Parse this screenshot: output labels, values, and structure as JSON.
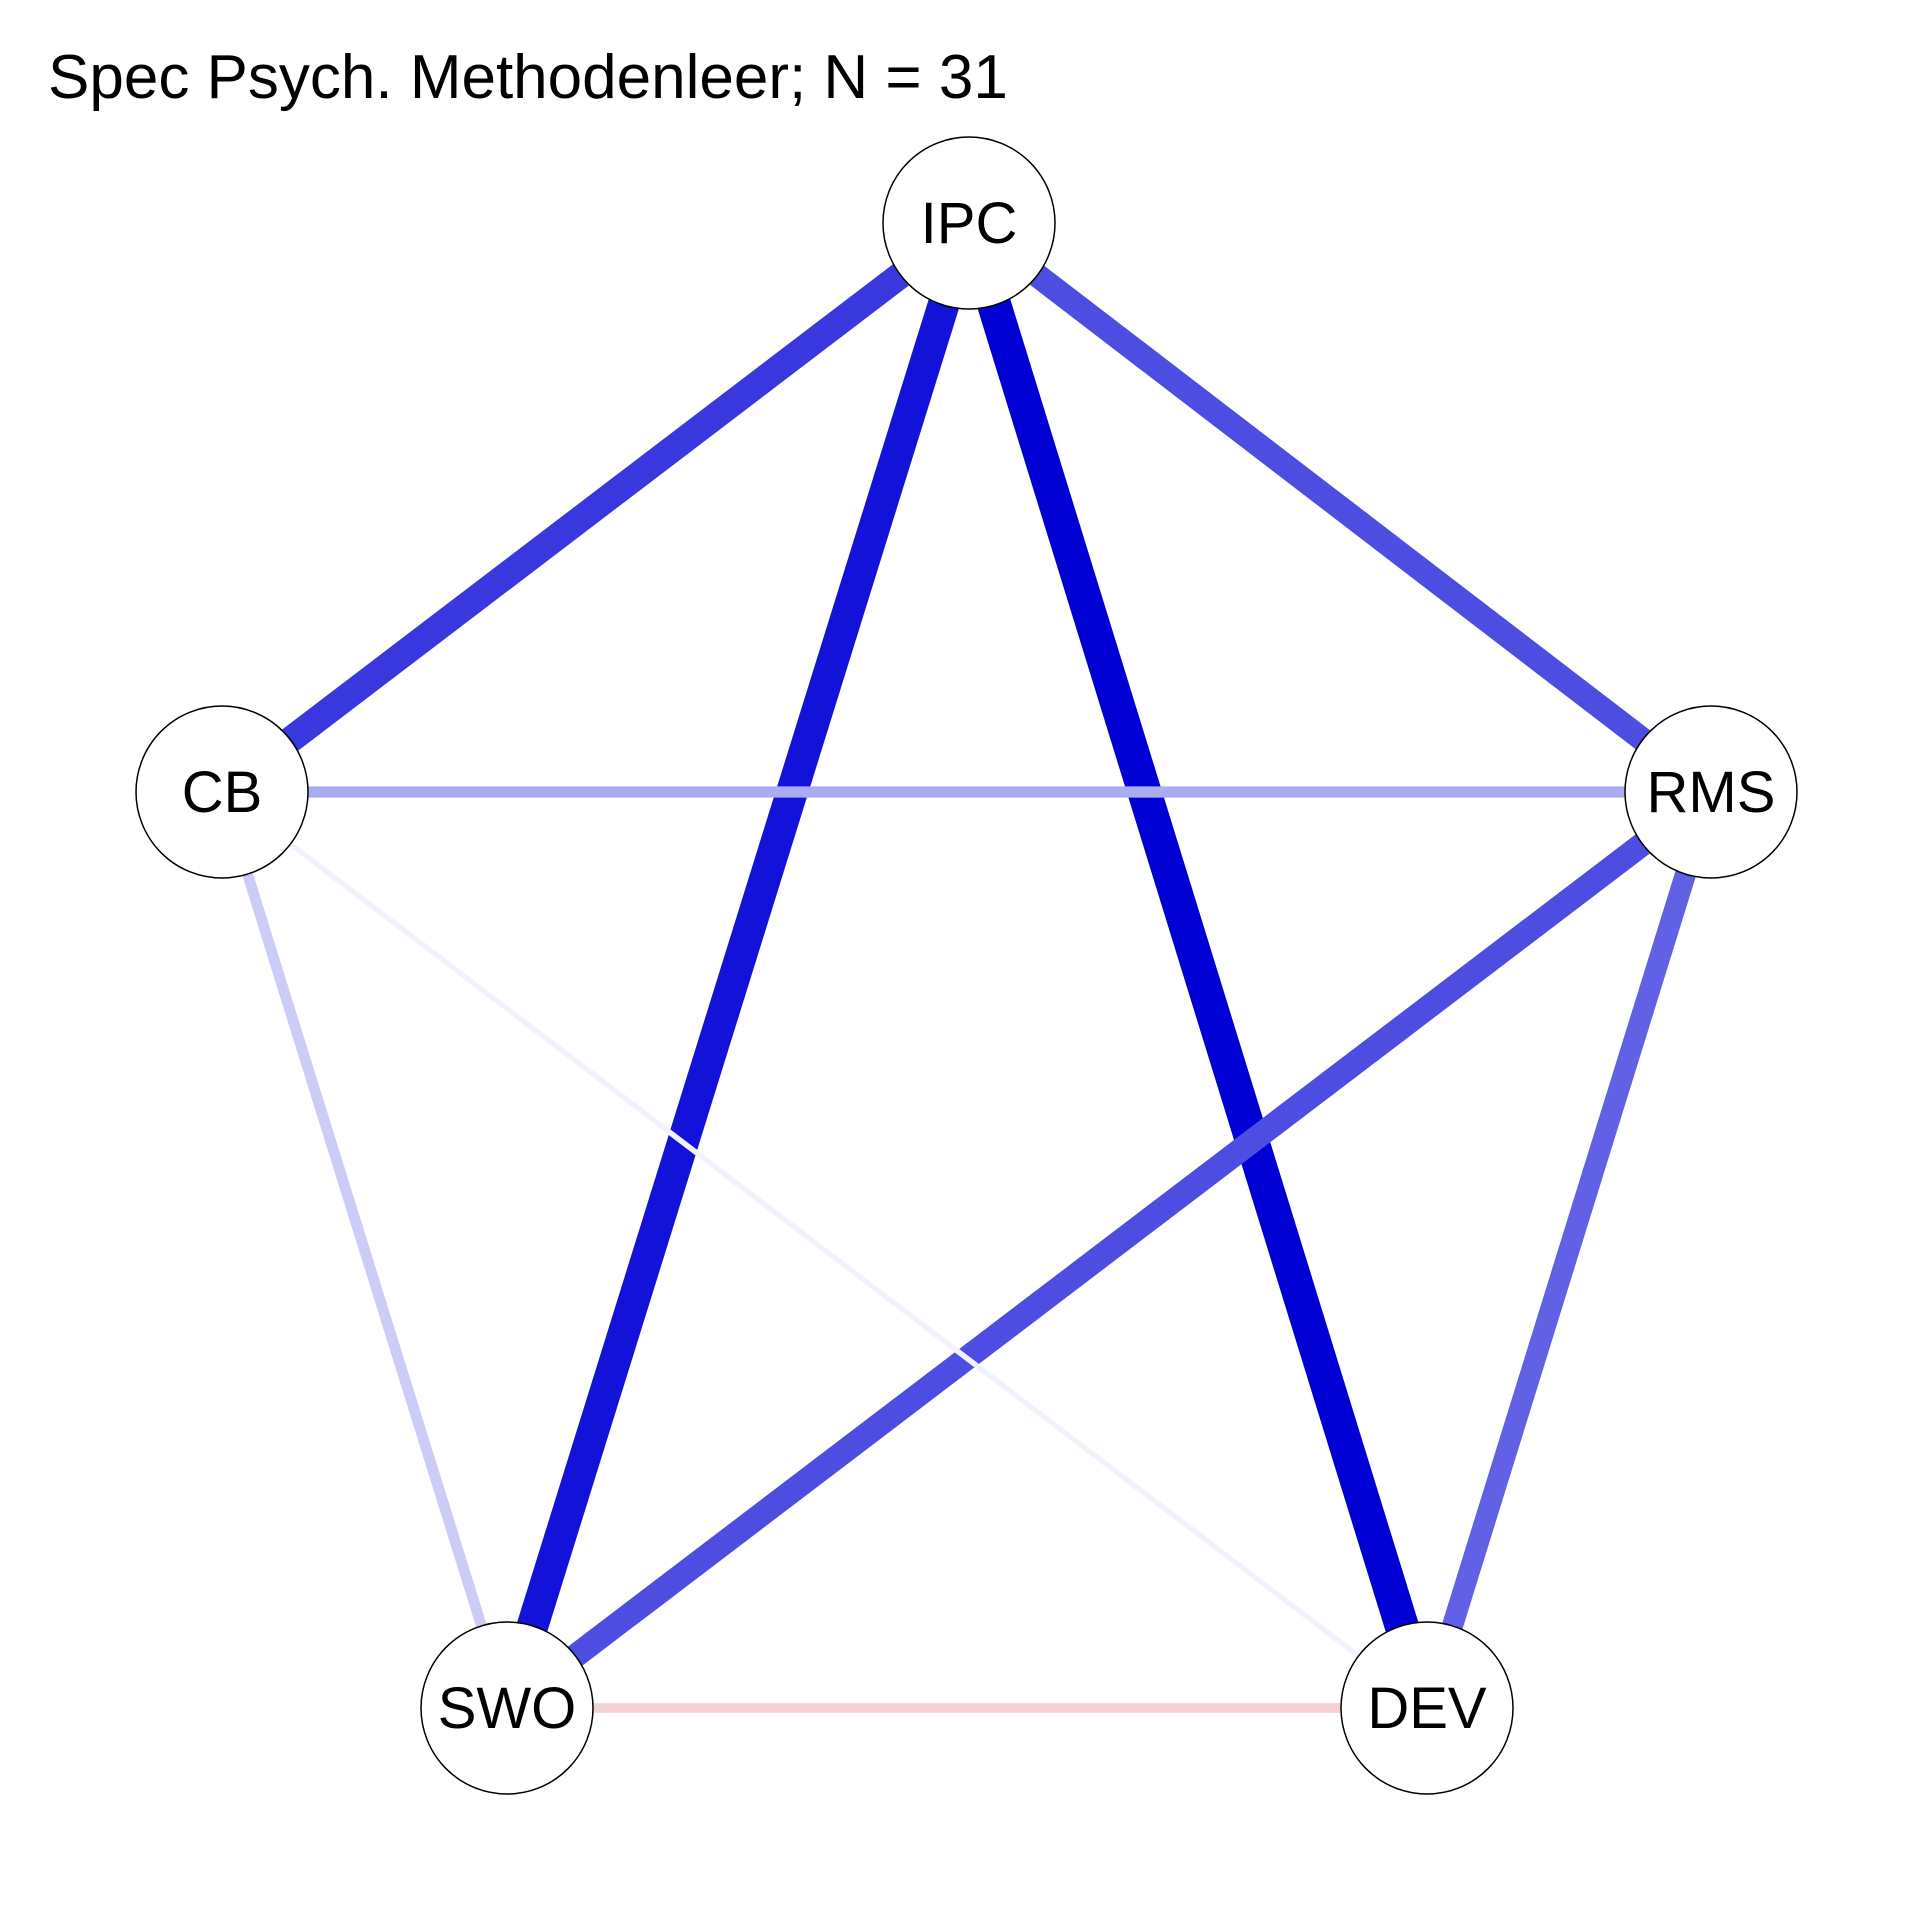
{
  "title": "Spec Psych. Methodenleer; N = 31",
  "colors": {
    "positive": "#0000d5",
    "negative": "#d5414b",
    "node_fill": "#ffffff",
    "node_border": "#000000"
  },
  "nodes": [
    {
      "id": "IPC",
      "label": "IPC"
    },
    {
      "id": "RMS",
      "label": "RMS"
    },
    {
      "id": "DEV",
      "label": "DEV"
    },
    {
      "id": "SWO",
      "label": "SWO"
    },
    {
      "id": "CB",
      "label": "CB"
    }
  ],
  "edges": [
    {
      "from": "IPC",
      "to": "DEV",
      "sign": "positive",
      "strength": 1.0
    },
    {
      "from": "IPC",
      "to": "SWO",
      "sign": "positive",
      "strength": 0.93
    },
    {
      "from": "IPC",
      "to": "CB",
      "sign": "positive",
      "strength": 0.78
    },
    {
      "from": "IPC",
      "to": "RMS",
      "sign": "positive",
      "strength": 0.7
    },
    {
      "from": "RMS",
      "to": "SWO",
      "sign": "positive",
      "strength": 0.7
    },
    {
      "from": "RMS",
      "to": "DEV",
      "sign": "positive",
      "strength": 0.62
    },
    {
      "from": "CB",
      "to": "RMS",
      "sign": "positive",
      "strength": 0.33
    },
    {
      "from": "CB",
      "to": "SWO",
      "sign": "positive",
      "strength": 0.2
    },
    {
      "from": "SWO",
      "to": "DEV",
      "sign": "negative",
      "strength": 0.17
    },
    {
      "from": "CB",
      "to": "DEV",
      "sign": "positive",
      "strength": 0.02
    }
  ]
}
